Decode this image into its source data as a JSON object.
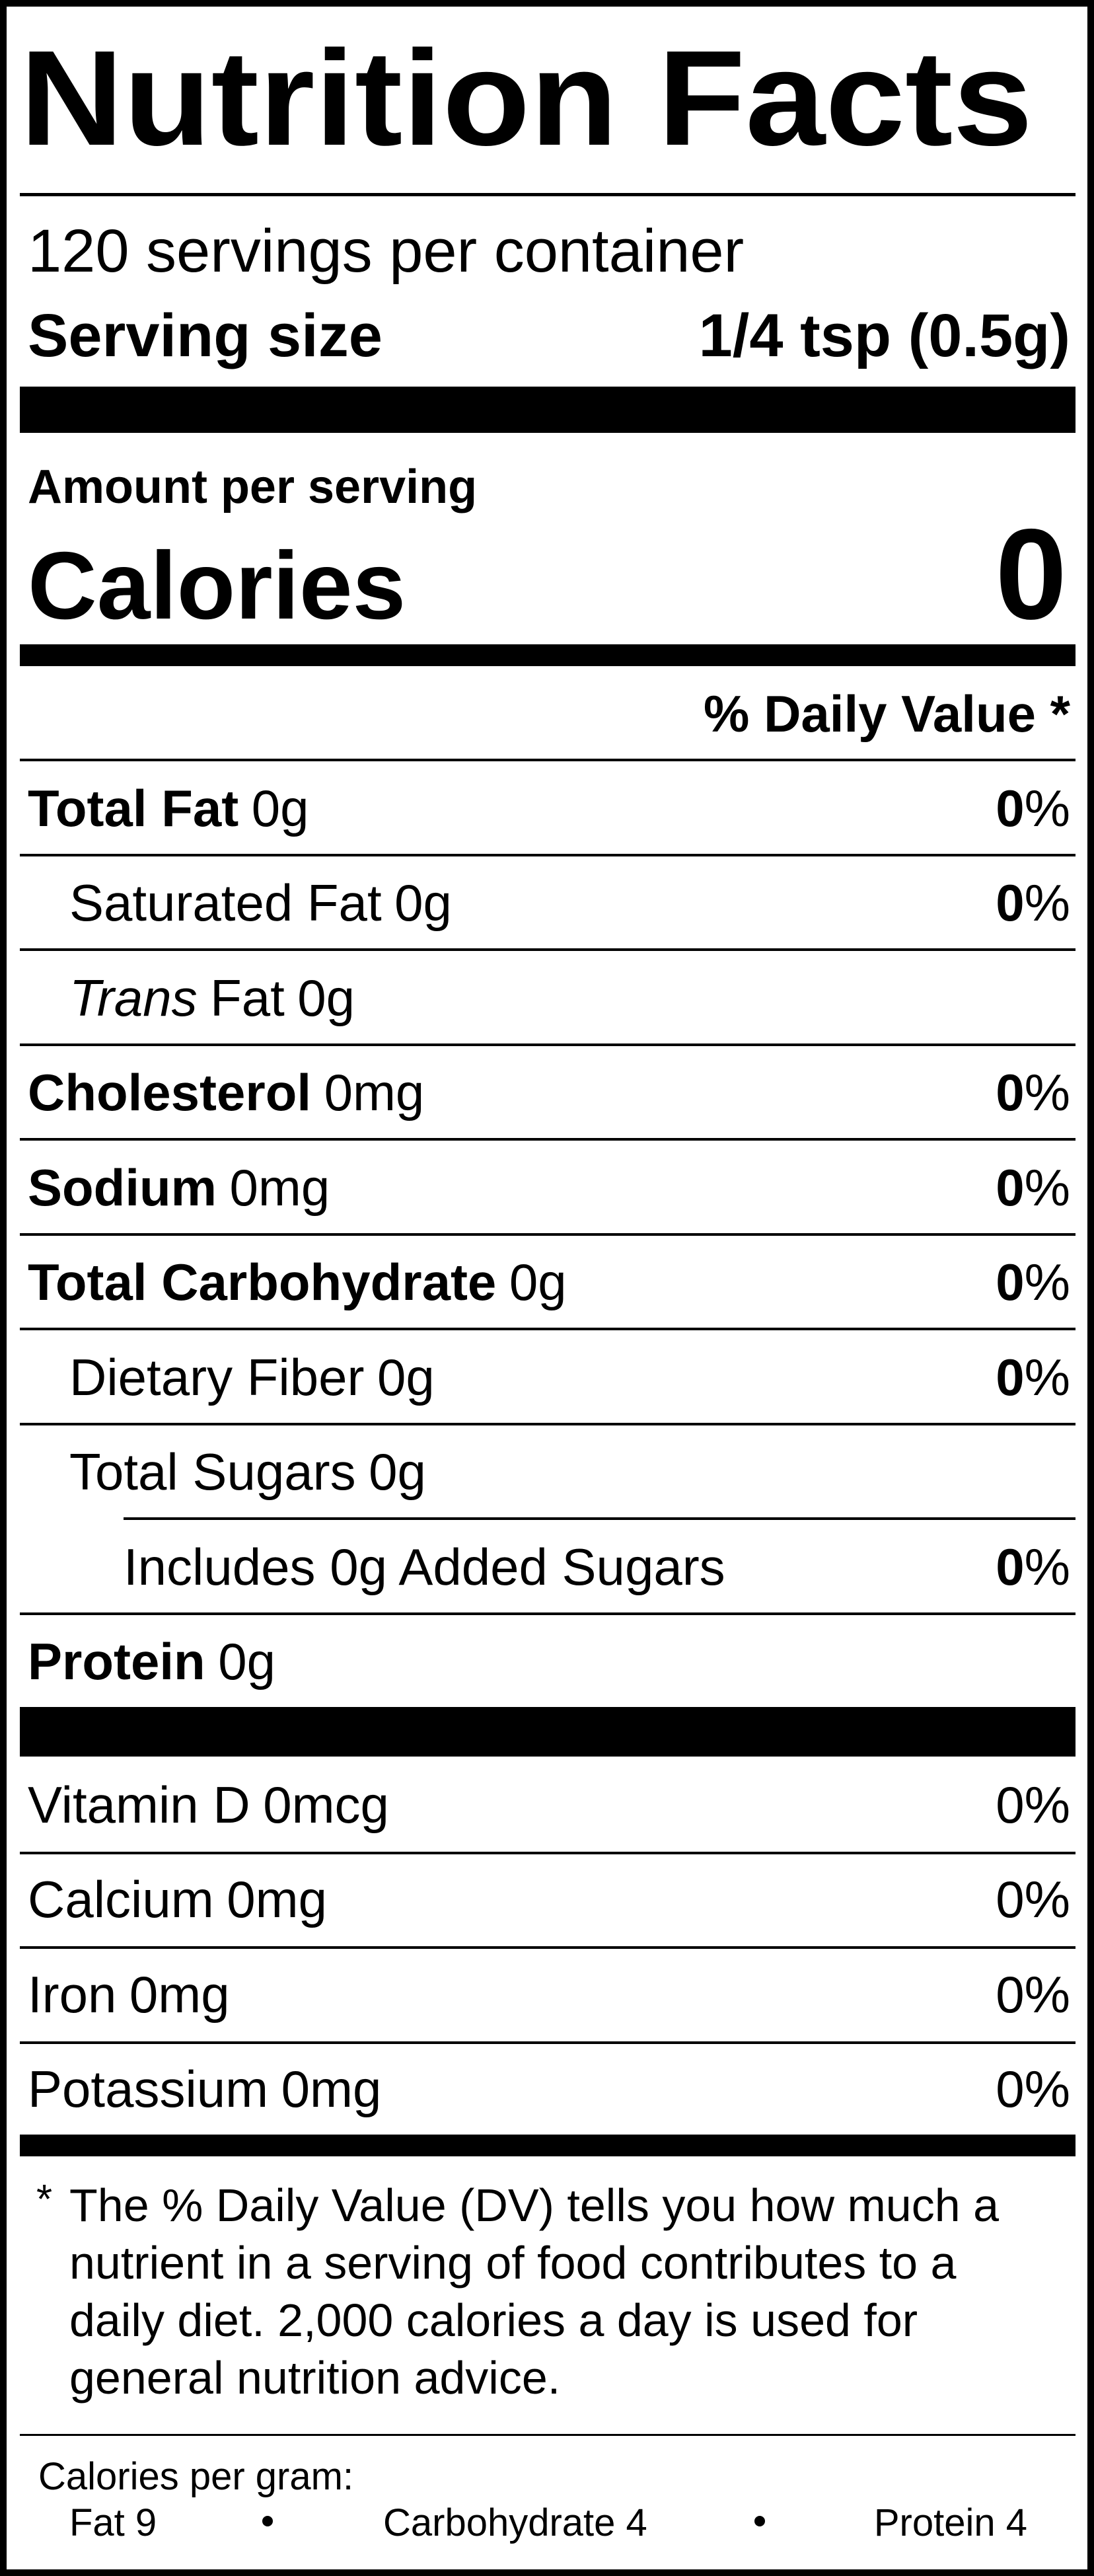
{
  "title": "Nutrition Facts",
  "servings_per_container": "120 servings per container",
  "serving_size": {
    "label": "Serving size",
    "value": "1/4 tsp (0.5g)"
  },
  "amount_per_serving": "Amount per serving",
  "calories": {
    "label": "Calories",
    "value": 0
  },
  "daily_value_header": "% Daily Value *",
  "nutrients": [
    {
      "name": "Total Fat",
      "amount": "0g",
      "dv": 0,
      "dv_unit": "%",
      "bold": true,
      "indent": 0
    },
    {
      "name": "Saturated Fat",
      "amount": "0g",
      "dv": 0,
      "dv_unit": "%",
      "bold": false,
      "indent": 1
    },
    {
      "name_italic": "Trans",
      "name": "Fat",
      "amount": "0g",
      "bold": false,
      "indent": 1
    },
    {
      "name": "Cholesterol",
      "amount": "0mg",
      "dv": 0,
      "dv_unit": "%",
      "bold": true,
      "indent": 0
    },
    {
      "name": "Sodium",
      "amount": "0mg",
      "dv": 0,
      "dv_unit": "%",
      "bold": true,
      "indent": 0
    },
    {
      "name": "Total Carbohydrate",
      "amount": "0g",
      "dv": 0,
      "dv_unit": "%",
      "bold": true,
      "indent": 0
    },
    {
      "name": "Dietary Fiber",
      "amount": "0g",
      "dv": 0,
      "dv_unit": "%",
      "bold": false,
      "indent": 1
    },
    {
      "name": "Total Sugars",
      "amount": "0g",
      "bold": false,
      "indent": 1
    },
    {
      "name": "Includes 0g Added Sugars",
      "dv": 0,
      "dv_unit": "%",
      "bold": false,
      "indent": 2
    },
    {
      "name": "Protein",
      "amount": "0g",
      "bold": true,
      "indent": 0
    }
  ],
  "vitamins": [
    {
      "name": "Vitamin D",
      "amount": "0mcg",
      "dv": 0,
      "dv_unit": "%"
    },
    {
      "name": "Calcium",
      "amount": "0mg",
      "dv": 0,
      "dv_unit": "%"
    },
    {
      "name": "Iron",
      "amount": "0mg",
      "dv": 0,
      "dv_unit": "%"
    },
    {
      "name": "Potassium",
      "amount": "0mg",
      "dv": 0,
      "dv_unit": "%"
    }
  ],
  "footnote": {
    "marker": "*",
    "text": "The % Daily Value (DV) tells you how much a nutrient in a serving of food contributes to a daily diet. 2,000 calories a day is used for general nutrition advice."
  },
  "calories_per_gram": {
    "label": "Calories per gram:",
    "items": [
      "Fat 9",
      "Carbohydrate 4",
      "Protein 4"
    ]
  }
}
